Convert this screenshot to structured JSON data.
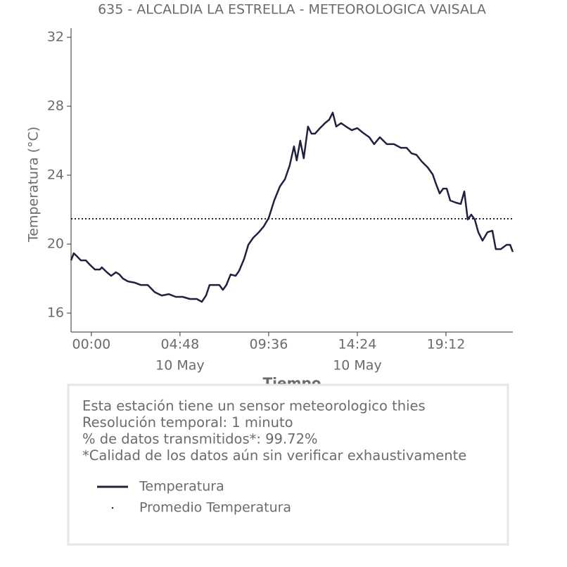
{
  "chart_data": {
    "type": "line",
    "title": "635 - ALCALDIA LA ESTRELLA - METEOROLOGICA VAISALA",
    "x_label": "Tiempo",
    "y_label": "Temperatura (°C)",
    "xlim": [
      -1.1,
      22.82
    ],
    "xticks": [
      {
        "value": 0,
        "label": "00:00"
      },
      {
        "value": 4.8,
        "label": "04:48",
        "date": "10 May"
      },
      {
        "value": 9.6,
        "label": "09:36"
      },
      {
        "value": 14.4,
        "label": "14:24",
        "date": "10 May"
      },
      {
        "value": 19.2,
        "label": "19:12"
      }
    ],
    "ylim": [
      14.9,
      32
    ],
    "yticks": [
      16,
      20,
      24,
      28,
      32
    ],
    "x": [
      -1.1,
      -0.95,
      -0.76,
      -0.57,
      -0.3,
      -0.08,
      0.19,
      0.46,
      0.57,
      0.84,
      1.07,
      1.33,
      1.52,
      1.71,
      1.98,
      2.36,
      2.67,
      3.05,
      3.43,
      3.81,
      4.19,
      4.57,
      4.95,
      5.33,
      5.71,
      5.98,
      6.21,
      6.4,
      6.67,
      6.93,
      7.12,
      7.31,
      7.54,
      7.81,
      8.0,
      8.27,
      8.5,
      8.76,
      9.07,
      9.33,
      9.6,
      9.9,
      10.21,
      10.48,
      10.74,
      10.97,
      11.12,
      11.31,
      11.5,
      11.73,
      11.92,
      12.11,
      12.38,
      12.65,
      12.88,
      13.07,
      13.26,
      13.52,
      13.79,
      14.1,
      14.4,
      14.67,
      15.05,
      15.31,
      15.62,
      16.0,
      16.38,
      16.76,
      17.07,
      17.33,
      17.6,
      17.9,
      18.21,
      18.48,
      18.67,
      18.86,
      19.05,
      19.24,
      19.43,
      19.73,
      20.0,
      20.19,
      20.38,
      20.57,
      20.76,
      20.95,
      21.18,
      21.45,
      21.71,
      21.9,
      22.17,
      22.48,
      22.67,
      22.82
    ],
    "series": [
      {
        "name": "Temperatura",
        "color": "#20213f",
        "values": [
          19.06,
          19.47,
          19.27,
          19.06,
          19.06,
          18.8,
          18.53,
          18.53,
          18.65,
          18.37,
          18.16,
          18.37,
          18.24,
          18.0,
          17.84,
          17.76,
          17.63,
          17.63,
          17.22,
          17.02,
          17.1,
          16.94,
          16.94,
          16.82,
          16.82,
          16.65,
          17.02,
          17.63,
          17.63,
          17.63,
          17.35,
          17.63,
          18.24,
          18.16,
          18.45,
          19.14,
          19.96,
          20.37,
          20.69,
          21.02,
          21.51,
          22.53,
          23.35,
          23.76,
          24.57,
          25.67,
          24.86,
          26.0,
          24.98,
          26.82,
          26.41,
          26.41,
          26.73,
          27.02,
          27.22,
          27.63,
          26.82,
          27.02,
          26.82,
          26.61,
          26.73,
          26.49,
          26.2,
          25.8,
          26.2,
          25.8,
          25.8,
          25.59,
          25.59,
          25.27,
          25.18,
          24.78,
          24.45,
          24.04,
          23.47,
          22.94,
          23.22,
          23.22,
          22.53,
          22.41,
          22.33,
          23.06,
          21.43,
          21.71,
          21.43,
          20.69,
          20.2,
          20.69,
          20.78,
          19.71,
          19.71,
          19.96,
          19.96,
          19.55
        ]
      }
    ],
    "mean": {
      "name": "Promedio Temperatura",
      "value": 21.47,
      "color": "#20213f"
    },
    "notes": [
      "Esta estación tiene un sensor meteorologico thies",
      "Resolución temporal: 1 minuto",
      "% de datos transmitidos*: 99.72%",
      "*Calidad de los datos aún sin verificar exhaustivamente"
    ]
  }
}
